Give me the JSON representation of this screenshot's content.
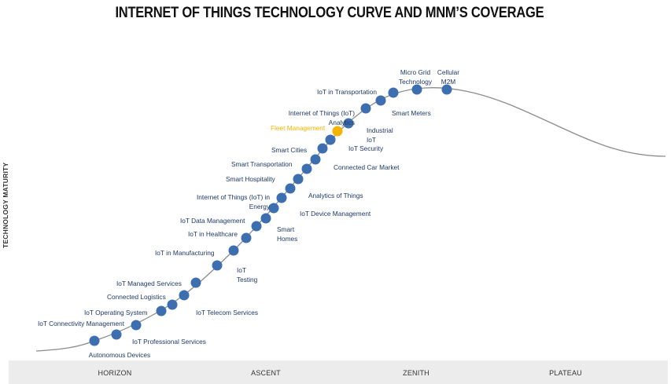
{
  "title": "INTERNET OF THINGS TECHNOLOGY CURVE AND MNM’S COVERAGE",
  "y_axis_label": "TECHNOLOGY MATURITY",
  "phases": [
    "HORIZON",
    "ASCENT",
    "ZENITH",
    "PLATEAU"
  ],
  "colors": {
    "dot": "#3d6fb0",
    "highlight": "#f5b400",
    "curve": "#8c8c8c",
    "label": "#1f3864",
    "bar": "#ececec"
  },
  "technologies": [
    {
      "name": "Autonomous Devices",
      "highlight": false
    },
    {
      "name": "IoT Professional  Services",
      "highlight": false
    },
    {
      "name": "IoT Connectivity Management",
      "highlight": false
    },
    {
      "name": "IoT Operating System",
      "highlight": false
    },
    {
      "name": "IoT Telecom Services",
      "highlight": false
    },
    {
      "name": "Connected Logistics",
      "highlight": false
    },
    {
      "name": "IoT Managed Services",
      "highlight": false
    },
    {
      "name": "IoT Testing",
      "highlight": false
    },
    {
      "name": "IoT in Manufacturing",
      "highlight": false
    },
    {
      "name": "IoT in Healthcare",
      "highlight": false
    },
    {
      "name": "Smart Homes",
      "highlight": false
    },
    {
      "name": "IoT Data Management",
      "highlight": false
    },
    {
      "name": "Internet of Things (IoT) in Energy",
      "highlight": false
    },
    {
      "name": "IoT Device Management",
      "highlight": false
    },
    {
      "name": "Analytics of Things",
      "highlight": false
    },
    {
      "name": "Smart Hospitality",
      "highlight": false
    },
    {
      "name": "Smart Transportation",
      "highlight": false
    },
    {
      "name": "Connected Car Market",
      "highlight": false
    },
    {
      "name": "Smart Cities",
      "highlight": false
    },
    {
      "name": "IoT Security",
      "highlight": false
    },
    {
      "name": "Fleet Management",
      "highlight": true
    },
    {
      "name": "Industrial IoT",
      "highlight": false
    },
    {
      "name": "Internet of Things (IoT) Analytics",
      "highlight": false
    },
    {
      "name": "Smart Meters",
      "highlight": false
    },
    {
      "name": "IoT in Transportation",
      "highlight": false
    },
    {
      "name": "Micro Grid Technology",
      "highlight": false
    },
    {
      "name": "Cellular M2M",
      "highlight": false
    }
  ],
  "labels": {
    "autonomous": "Autonomous Devices",
    "professional": "IoT Professional  Services",
    "connectivity": "IoT Connectivity Management",
    "operating": "IoT Operating System",
    "telecom": "IoT Telecom Services",
    "logistics": "Connected Logistics",
    "managed": "IoT Managed Services",
    "testing_1": "IoT",
    "testing_2": "Testing",
    "manufacturing": "IoT in Manufacturing",
    "healthcare": "IoT in Healthcare",
    "homes_1": "Smart",
    "homes_2": "Homes",
    "datamgmt": "IoT Data Management",
    "energy_1": "Internet of Things (IoT) in",
    "energy_2": "Energy",
    "devicemgmt": "IoT Device Management",
    "aot": "Analytics of Things",
    "hospitality": "Smart Hospitality",
    "smarttransport": "Smart Transportation",
    "connectedcar": "Connected Car Market",
    "cities": "Smart Cities",
    "security": "IoT Security",
    "fleet": "Fleet Management",
    "industrial_1": "Industrial",
    "industrial_2": "IoT",
    "analytics_1": "Internet of Things (IoT)",
    "analytics_2": "Analytics",
    "meters": "Smart Meters",
    "iottransport": "IoT in Transportation",
    "microgrid_1": "Micro Grid",
    "microgrid_2": "Technology",
    "cellular_1": "Cellular",
    "cellular_2": "M2M"
  }
}
